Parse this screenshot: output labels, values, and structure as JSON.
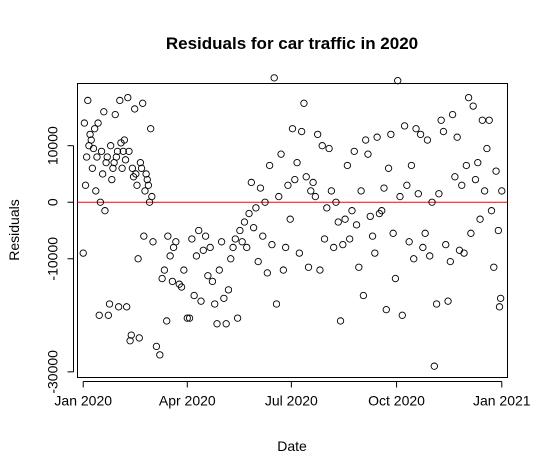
{
  "chart_data": {
    "type": "scatter",
    "title": "Residuals for car traffic in 2020",
    "xlabel": "Date",
    "ylabel": "Residuals",
    "x_range": [
      "2019-12-27",
      "2021-01-06"
    ],
    "ylim": [
      -31000,
      21000
    ],
    "x_ticks": [
      {
        "date": "2020-01-01",
        "label": "Jan 2020"
      },
      {
        "date": "2020-04-01",
        "label": "Apr 2020"
      },
      {
        "date": "2020-07-01",
        "label": "Jul 2020"
      },
      {
        "date": "2020-10-01",
        "label": "Oct 2020"
      },
      {
        "date": "2021-01-01",
        "label": "Jan 2021"
      }
    ],
    "y_ticks": [
      {
        "value": -30000,
        "label": "-30000"
      },
      {
        "value": -10000,
        "label": "-10000"
      },
      {
        "value": 0,
        "label": "0"
      },
      {
        "value": 10000,
        "label": "10000"
      }
    ],
    "reference_line": {
      "y": 0,
      "color": "#ff0000"
    },
    "grid": false,
    "legend": "none",
    "point_style": "open circle",
    "colors": {
      "points": "#000000",
      "reference_line": "#ff0000"
    },
    "series": [
      {
        "points": [
          [
            "2020-01-01",
            -9000
          ],
          [
            "2020-01-02",
            14000
          ],
          [
            "2020-01-03",
            3000
          ],
          [
            "2020-01-04",
            8000
          ],
          [
            "2020-01-05",
            18000
          ],
          [
            "2020-01-06",
            10000
          ],
          [
            "2020-01-07",
            12000
          ],
          [
            "2020-01-08",
            11000
          ],
          [
            "2020-01-09",
            6000
          ],
          [
            "2020-01-10",
            9500
          ],
          [
            "2020-01-11",
            13000
          ],
          [
            "2020-01-12",
            2000
          ],
          [
            "2020-01-13",
            8000
          ],
          [
            "2020-01-14",
            14000
          ],
          [
            "2020-01-15",
            -20000
          ],
          [
            "2020-01-16",
            0
          ],
          [
            "2020-01-17",
            9000
          ],
          [
            "2020-01-18",
            5000
          ],
          [
            "2020-01-19",
            16000
          ],
          [
            "2020-01-20",
            -1500
          ],
          [
            "2020-01-21",
            7000
          ],
          [
            "2020-01-22",
            8000
          ],
          [
            "2020-01-23",
            -20000
          ],
          [
            "2020-01-24",
            -18000
          ],
          [
            "2020-01-25",
            10000
          ],
          [
            "2020-01-26",
            4000
          ],
          [
            "2020-01-27",
            6000
          ],
          [
            "2020-01-28",
            7000
          ],
          [
            "2020-01-29",
            15500
          ],
          [
            "2020-01-30",
            8000
          ],
          [
            "2020-01-31",
            9000
          ],
          [
            "2020-02-01",
            -18500
          ],
          [
            "2020-02-02",
            18000
          ],
          [
            "2020-02-03",
            10500
          ],
          [
            "2020-02-04",
            6000
          ],
          [
            "2020-02-05",
            9000
          ],
          [
            "2020-02-06",
            11000
          ],
          [
            "2020-02-07",
            7500
          ],
          [
            "2020-02-08",
            -18500
          ],
          [
            "2020-02-09",
            18500
          ],
          [
            "2020-02-10",
            9000
          ],
          [
            "2020-02-11",
            -24500
          ],
          [
            "2020-02-12",
            -23500
          ],
          [
            "2020-02-13",
            6000
          ],
          [
            "2020-02-14",
            4500
          ],
          [
            "2020-02-15",
            16500
          ],
          [
            "2020-02-16",
            5000
          ],
          [
            "2020-02-17",
            3000
          ],
          [
            "2020-02-18",
            -10000
          ],
          [
            "2020-02-19",
            -24000
          ],
          [
            "2020-02-20",
            7000
          ],
          [
            "2020-02-21",
            6000
          ],
          [
            "2020-02-22",
            17500
          ],
          [
            "2020-02-23",
            -6000
          ],
          [
            "2020-02-24",
            2000
          ],
          [
            "2020-02-25",
            5000
          ],
          [
            "2020-02-26",
            4000
          ],
          [
            "2020-02-27",
            3000
          ],
          [
            "2020-02-28",
            0
          ],
          [
            "2020-02-29",
            13000
          ],
          [
            "2020-03-01",
            1000
          ],
          [
            "2020-03-02",
            -7000
          ],
          [
            "2020-03-05",
            -25500
          ],
          [
            "2020-03-08",
            -27000
          ],
          [
            "2020-03-10",
            -13500
          ],
          [
            "2020-03-12",
            -12000
          ],
          [
            "2020-03-14",
            -21000
          ],
          [
            "2020-03-15",
            -6000
          ],
          [
            "2020-03-17",
            -9500
          ],
          [
            "2020-03-19",
            -14000
          ],
          [
            "2020-03-20",
            -8000
          ],
          [
            "2020-03-22",
            -7000
          ],
          [
            "2020-03-25",
            -14500
          ],
          [
            "2020-03-27",
            -15000
          ],
          [
            "2020-03-29",
            -12000
          ],
          [
            "2020-04-01",
            -20500
          ],
          [
            "2020-04-03",
            -20500
          ],
          [
            "2020-04-05",
            -6500
          ],
          [
            "2020-04-07",
            -16500
          ],
          [
            "2020-04-09",
            -9500
          ],
          [
            "2020-04-11",
            -5000
          ],
          [
            "2020-04-13",
            -17500
          ],
          [
            "2020-04-15",
            -8500
          ],
          [
            "2020-04-17",
            -6000
          ],
          [
            "2020-04-19",
            -13000
          ],
          [
            "2020-04-21",
            -8000
          ],
          [
            "2020-04-23",
            -14000
          ],
          [
            "2020-04-25",
            -18000
          ],
          [
            "2020-04-27",
            -21500
          ],
          [
            "2020-04-29",
            -12000
          ],
          [
            "2020-05-01",
            -7000
          ],
          [
            "2020-05-03",
            -17000
          ],
          [
            "2020-05-05",
            -21500
          ],
          [
            "2020-05-07",
            -15500
          ],
          [
            "2020-05-09",
            -10000
          ],
          [
            "2020-05-11",
            -8000
          ],
          [
            "2020-05-13",
            -6500
          ],
          [
            "2020-05-15",
            -20500
          ],
          [
            "2020-05-17",
            -5000
          ],
          [
            "2020-05-19",
            -7000
          ],
          [
            "2020-05-21",
            -3500
          ],
          [
            "2020-05-23",
            -8000
          ],
          [
            "2020-05-25",
            -2000
          ],
          [
            "2020-05-27",
            3500
          ],
          [
            "2020-05-29",
            -4500
          ],
          [
            "2020-05-31",
            -1000
          ],
          [
            "2020-06-02",
            -10500
          ],
          [
            "2020-06-04",
            2500
          ],
          [
            "2020-06-06",
            -6000
          ],
          [
            "2020-06-08",
            0
          ],
          [
            "2020-06-10",
            -12500
          ],
          [
            "2020-06-12",
            6500
          ],
          [
            "2020-06-14",
            -7500
          ],
          [
            "2020-06-16",
            22000
          ],
          [
            "2020-06-18",
            -18000
          ],
          [
            "2020-06-20",
            1000
          ],
          [
            "2020-06-22",
            8500
          ],
          [
            "2020-06-24",
            -12000
          ],
          [
            "2020-06-26",
            -8000
          ],
          [
            "2020-06-28",
            3000
          ],
          [
            "2020-06-30",
            -3000
          ],
          [
            "2020-07-02",
            13000
          ],
          [
            "2020-07-04",
            4000
          ],
          [
            "2020-07-06",
            7000
          ],
          [
            "2020-07-08",
            -9000
          ],
          [
            "2020-07-10",
            12500
          ],
          [
            "2020-07-12",
            17500
          ],
          [
            "2020-07-14",
            4500
          ],
          [
            "2020-07-16",
            -11500
          ],
          [
            "2020-07-18",
            2000
          ],
          [
            "2020-07-20",
            3500
          ],
          [
            "2020-07-22",
            1000
          ],
          [
            "2020-07-24",
            12000
          ],
          [
            "2020-07-26",
            -12000
          ],
          [
            "2020-07-28",
            10000
          ],
          [
            "2020-07-30",
            -6500
          ],
          [
            "2020-08-01",
            -1000
          ],
          [
            "2020-08-03",
            9500
          ],
          [
            "2020-08-05",
            2000
          ],
          [
            "2020-08-07",
            -8000
          ],
          [
            "2020-08-09",
            0
          ],
          [
            "2020-08-11",
            -3500
          ],
          [
            "2020-08-13",
            -21000
          ],
          [
            "2020-08-15",
            -7500
          ],
          [
            "2020-08-17",
            -3000
          ],
          [
            "2020-08-19",
            6500
          ],
          [
            "2020-08-21",
            -6500
          ],
          [
            "2020-08-23",
            -1500
          ],
          [
            "2020-08-25",
            9000
          ],
          [
            "2020-08-27",
            -4000
          ],
          [
            "2020-08-29",
            -11500
          ],
          [
            "2020-08-31",
            2000
          ],
          [
            "2020-09-02",
            -16500
          ],
          [
            "2020-09-04",
            11000
          ],
          [
            "2020-09-06",
            8500
          ],
          [
            "2020-09-08",
            -2500
          ],
          [
            "2020-09-10",
            -6000
          ],
          [
            "2020-09-12",
            -9000
          ],
          [
            "2020-09-14",
            11500
          ],
          [
            "2020-09-16",
            -2000
          ],
          [
            "2020-09-18",
            -1500
          ],
          [
            "2020-09-20",
            2500
          ],
          [
            "2020-09-22",
            -19000
          ],
          [
            "2020-09-24",
            6000
          ],
          [
            "2020-09-26",
            12000
          ],
          [
            "2020-09-28",
            -5500
          ],
          [
            "2020-09-30",
            -13500
          ],
          [
            "2020-10-02",
            21500
          ],
          [
            "2020-10-04",
            1000
          ],
          [
            "2020-10-06",
            -20000
          ],
          [
            "2020-10-08",
            13500
          ],
          [
            "2020-10-10",
            3000
          ],
          [
            "2020-10-12",
            -7000
          ],
          [
            "2020-10-14",
            6500
          ],
          [
            "2020-10-16",
            -10000
          ],
          [
            "2020-10-18",
            13000
          ],
          [
            "2020-10-20",
            1500
          ],
          [
            "2020-10-22",
            12000
          ],
          [
            "2020-10-24",
            -8000
          ],
          [
            "2020-10-26",
            -5500
          ],
          [
            "2020-10-28",
            11000
          ],
          [
            "2020-10-30",
            -9500
          ],
          [
            "2020-11-01",
            0
          ],
          [
            "2020-11-03",
            -29000
          ],
          [
            "2020-11-05",
            -18000
          ],
          [
            "2020-11-07",
            1500
          ],
          [
            "2020-11-09",
            14500
          ],
          [
            "2020-11-11",
            12500
          ],
          [
            "2020-11-13",
            -7500
          ],
          [
            "2020-11-15",
            -17500
          ],
          [
            "2020-11-17",
            -10500
          ],
          [
            "2020-11-19",
            15500
          ],
          [
            "2020-11-21",
            4500
          ],
          [
            "2020-11-23",
            11500
          ],
          [
            "2020-11-25",
            -8500
          ],
          [
            "2020-11-27",
            3000
          ],
          [
            "2020-11-29",
            -9000
          ],
          [
            "2020-12-01",
            6500
          ],
          [
            "2020-12-03",
            18500
          ],
          [
            "2020-12-05",
            -5500
          ],
          [
            "2020-12-07",
            17000
          ],
          [
            "2020-12-09",
            4000
          ],
          [
            "2020-12-11",
            7000
          ],
          [
            "2020-12-13",
            -3000
          ],
          [
            "2020-12-15",
            14500
          ],
          [
            "2020-12-17",
            2000
          ],
          [
            "2020-12-19",
            9500
          ],
          [
            "2020-12-21",
            14500
          ],
          [
            "2020-12-23",
            -1500
          ],
          [
            "2020-12-25",
            -11500
          ],
          [
            "2020-12-27",
            5500
          ],
          [
            "2020-12-29",
            -5000
          ],
          [
            "2020-12-30",
            -18500
          ],
          [
            "2020-12-31",
            -17000
          ],
          [
            "2021-01-01",
            2000
          ]
        ]
      }
    ]
  }
}
